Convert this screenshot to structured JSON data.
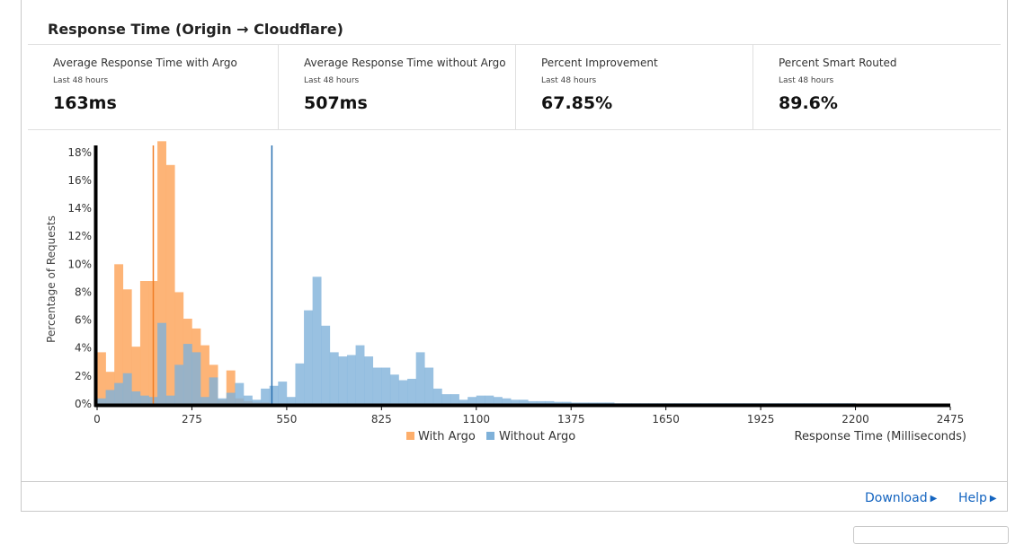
{
  "card": {
    "title": "Response Time (Origin → Cloudflare)"
  },
  "stats": [
    {
      "label": "Average Response Time with Argo",
      "period": "Last 48 hours",
      "value": "163ms"
    },
    {
      "label": "Average Response Time without Argo",
      "period": "Last 48 hours",
      "value": "507ms"
    },
    {
      "label": "Percent Improvement",
      "period": "Last 48 hours",
      "value": "67.85%"
    },
    {
      "label": "Percent Smart Routed",
      "period": "Last 48 hours",
      "value": "89.6%"
    }
  ],
  "footer": {
    "download_label": "Download",
    "help_label": "Help",
    "link_color": "#1565c0"
  },
  "chart_data": {
    "type": "bar",
    "title": "",
    "xlabel": "Response Time (Milliseconds)",
    "ylabel": "Percentage of Requests",
    "xlim": [
      0,
      2475
    ],
    "ylim": [
      0,
      18.5
    ],
    "bin_width": 25,
    "x_ticks": [
      0,
      275,
      550,
      825,
      1100,
      1375,
      1650,
      1925,
      2200,
      2475
    ],
    "x_tick_labels": [
      "0",
      "275",
      "550",
      "825",
      "1100",
      "1375",
      "1650",
      "1925",
      "2200",
      "2475"
    ],
    "y_ticks": [
      0,
      2,
      4,
      6,
      8,
      10,
      12,
      14,
      16,
      18
    ],
    "y_tick_labels": [
      "0%",
      "2%",
      "4%",
      "6%",
      "8%",
      "10%",
      "12%",
      "14%",
      "16%",
      "18%"
    ],
    "legend": {
      "placement": "bottom-center"
    },
    "grid": false,
    "series": [
      {
        "name": "With Argo",
        "color": "#fdae6b",
        "mean_line": 163,
        "mean_line_color": "#f07e26",
        "values": [
          3.7,
          2.3,
          10.0,
          8.2,
          4.1,
          8.8,
          8.8,
          18.8,
          17.1,
          8.0,
          6.1,
          5.4,
          4.2,
          2.8,
          0.3,
          2.4,
          0.4,
          0.2,
          0.1,
          0.1
        ]
      },
      {
        "name": "Without Argo",
        "color": "#7fb1d9",
        "mean_line": 507,
        "mean_line_color": "#2a70b0",
        "values": [
          0.4,
          1.0,
          1.5,
          2.2,
          0.9,
          0.6,
          0.5,
          5.8,
          0.6,
          2.8,
          4.3,
          3.7,
          0.5,
          1.9,
          0.4,
          0.8,
          1.5,
          0.6,
          0.3,
          1.1,
          1.3,
          1.6,
          0.5,
          2.9,
          6.7,
          9.1,
          5.6,
          3.7,
          3.4,
          3.5,
          4.2,
          3.4,
          2.6,
          2.6,
          2.1,
          1.7,
          1.8,
          3.7,
          2.6,
          1.1,
          0.7,
          0.7,
          0.3,
          0.5,
          0.6,
          0.6,
          0.5,
          0.4,
          0.3,
          0.3,
          0.2,
          0.2,
          0.2,
          0.15,
          0.15,
          0.1,
          0.1,
          0.1,
          0.1,
          0.1,
          0.05,
          0.05,
          0.05,
          0.05,
          0.05,
          0.05,
          0.05,
          0.05,
          0.05,
          0.05,
          0.05,
          0.05,
          0.05,
          0.05,
          0.05,
          0.05,
          0.05,
          0.05,
          0.05,
          0.05,
          0.05,
          0.05,
          0.05,
          0.05,
          0.05,
          0.05,
          0.05,
          0.05
        ]
      }
    ]
  }
}
